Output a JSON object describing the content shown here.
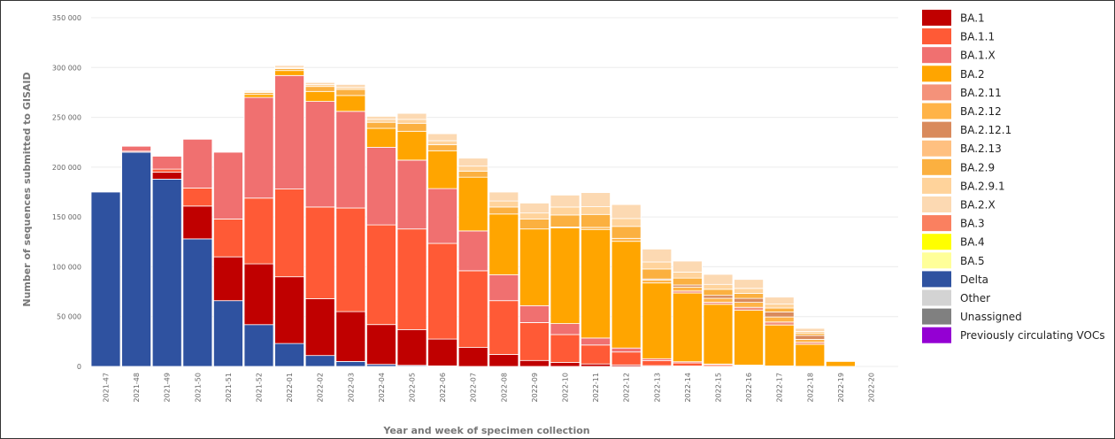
{
  "chart_data": {
    "type": "bar",
    "stacked": true,
    "title": "",
    "xlabel": "Year and week of specimen collection",
    "ylabel": "Number of sequences submitted to GISAID",
    "ylim": [
      0,
      350000
    ],
    "yticks": [
      0,
      50000,
      100000,
      150000,
      200000,
      250000,
      300000,
      350000
    ],
    "ytick_labels": [
      "0",
      "50 000",
      "100 000",
      "150 000",
      "200 000",
      "250 000",
      "300 000",
      "350 000"
    ],
    "grid": true,
    "legend_position": "right",
    "categories": [
      "2021-47",
      "2021-48",
      "2021-49",
      "2021-50",
      "2021-51",
      "2021-52",
      "2022-01",
      "2022-02",
      "2022-03",
      "2022-04",
      "2022-05",
      "2022-06",
      "2022-07",
      "2022-08",
      "2022-09",
      "2022-10",
      "2022-11",
      "2022-12",
      "2022-13",
      "2022-14",
      "2022-15",
      "2022-16",
      "2022-17",
      "2022-18",
      "2022-19",
      "2022-20"
    ],
    "series": [
      {
        "name": "Delta",
        "color": "#2f52a0",
        "values": [
          175000,
          215000,
          188000,
          128000,
          66000,
          42000,
          23000,
          11000,
          5000,
          2000,
          1000,
          500,
          0,
          0,
          0,
          0,
          0,
          0,
          0,
          0,
          0,
          0,
          0,
          0,
          0,
          0
        ]
      },
      {
        "name": "Other",
        "color": "#d3d3d3",
        "values": [
          0,
          0,
          0,
          0,
          0,
          0,
          0,
          0,
          0,
          0,
          0,
          0,
          0,
          0,
          0,
          0,
          0,
          0,
          0,
          0,
          0,
          0,
          0,
          0,
          0,
          0
        ]
      },
      {
        "name": "Unassigned",
        "color": "#808080",
        "values": [
          0,
          0,
          0,
          0,
          0,
          0,
          0,
          0,
          0,
          0,
          0,
          0,
          0,
          0,
          0,
          0,
          0,
          0,
          0,
          0,
          0,
          0,
          0,
          0,
          0,
          0
        ]
      },
      {
        "name": "BA.1",
        "color": "#c00000",
        "values": [
          0,
          1000,
          7000,
          33000,
          44000,
          61000,
          67000,
          57000,
          50000,
          40000,
          36000,
          27000,
          19000,
          12000,
          6000,
          4000,
          2500,
          1500,
          800,
          500,
          200,
          100,
          0,
          0,
          0,
          0
        ]
      },
      {
        "name": "BA.1.1",
        "color": "#ff5a36",
        "values": [
          0,
          0,
          3000,
          18000,
          38000,
          66000,
          88000,
          92000,
          104000,
          100000,
          101000,
          96000,
          77000,
          54000,
          38000,
          28000,
          19000,
          13000,
          5000,
          3000,
          1500,
          800,
          400,
          100,
          0,
          0
        ]
      },
      {
        "name": "BA.1.X",
        "color": "#f07070",
        "values": [
          0,
          5000,
          13000,
          49000,
          67000,
          101000,
          114000,
          106000,
          97000,
          78000,
          69000,
          55000,
          40000,
          26000,
          17000,
          11000,
          7000,
          4000,
          2000,
          1200,
          700,
          400,
          200,
          100,
          0,
          0
        ]
      },
      {
        "name": "BA.2",
        "color": "#ffa500",
        "values": [
          0,
          0,
          0,
          0,
          0,
          3000,
          5000,
          10000,
          16000,
          19000,
          29000,
          38000,
          54000,
          61000,
          77000,
          96000,
          109000,
          107000,
          76000,
          69000,
          60000,
          55000,
          41000,
          22000,
          5000,
          0
        ]
      },
      {
        "name": "BA.2.11",
        "color": "#f4927a",
        "values": [
          0,
          0,
          0,
          0,
          0,
          0,
          0,
          0,
          0,
          0,
          0,
          0,
          0,
          0,
          0,
          0,
          0,
          0,
          0,
          2000,
          2000,
          3000,
          3000,
          2000,
          0,
          0
        ]
      },
      {
        "name": "BA.2.12",
        "color": "#ffb347",
        "values": [
          0,
          0,
          0,
          0,
          0,
          0,
          0,
          0,
          0,
          0,
          0,
          0,
          0,
          0,
          0,
          1000,
          2000,
          3000,
          3000,
          4000,
          4000,
          5000,
          5000,
          3000,
          0,
          0
        ]
      },
      {
        "name": "BA.2.12.1",
        "color": "#d98a5c",
        "values": [
          0,
          0,
          0,
          0,
          0,
          0,
          0,
          0,
          0,
          0,
          0,
          0,
          0,
          0,
          0,
          0,
          0,
          0,
          1000,
          2000,
          3000,
          4000,
          5000,
          4000,
          0,
          0
        ]
      },
      {
        "name": "BA.2.13",
        "color": "#ffc080",
        "values": [
          0,
          0,
          0,
          0,
          0,
          0,
          0,
          0,
          0,
          0,
          0,
          0,
          0,
          0,
          0,
          0,
          0,
          0,
          0,
          0,
          0,
          0,
          0,
          0,
          0,
          0
        ]
      },
      {
        "name": "BA.2.9",
        "color": "#fbb040",
        "values": [
          0,
          0,
          0,
          0,
          0,
          2000,
          2000,
          5000,
          6000,
          6000,
          8000,
          6000,
          6000,
          7000,
          10000,
          12000,
          13000,
          12000,
          10000,
          7000,
          6000,
          5000,
          4000,
          2000,
          0,
          0
        ]
      },
      {
        "name": "BA.2.9.1",
        "color": "#ffd39b",
        "values": [
          0,
          0,
          0,
          0,
          0,
          1000,
          1000,
          2000,
          2000,
          3000,
          4000,
          4000,
          5000,
          6000,
          6000,
          8000,
          8000,
          8000,
          7000,
          6000,
          5000,
          5000,
          4000,
          2000,
          0,
          0
        ]
      },
      {
        "name": "BA.2.X",
        "color": "#fcd9b2",
        "values": [
          0,
          0,
          0,
          0,
          0,
          1000,
          2000,
          2000,
          3000,
          3000,
          6000,
          7000,
          8000,
          9000,
          10000,
          12000,
          14000,
          14000,
          13000,
          11000,
          10000,
          9000,
          7000,
          3000,
          0,
          0
        ]
      },
      {
        "name": "BA.3",
        "color": "#fa8060",
        "values": [
          0,
          0,
          0,
          0,
          0,
          0,
          0,
          0,
          0,
          0,
          0,
          0,
          0,
          0,
          0,
          0,
          0,
          0,
          0,
          0,
          0,
          0,
          0,
          0,
          0,
          0
        ]
      },
      {
        "name": "BA.4",
        "color": "#ffff00",
        "values": [
          0,
          0,
          0,
          0,
          0,
          0,
          0,
          0,
          0,
          0,
          0,
          0,
          0,
          0,
          0,
          0,
          0,
          0,
          0,
          0,
          0,
          0,
          0,
          0,
          0,
          0
        ]
      },
      {
        "name": "BA.5",
        "color": "#ffff99",
        "values": [
          0,
          0,
          0,
          0,
          0,
          0,
          0,
          0,
          0,
          0,
          0,
          0,
          0,
          0,
          0,
          0,
          0,
          0,
          0,
          0,
          0,
          0,
          0,
          0,
          0,
          0
        ]
      },
      {
        "name": "Previously circulating VOCs",
        "color": "#9400d3",
        "values": [
          0,
          0,
          0,
          0,
          0,
          0,
          0,
          0,
          0,
          0,
          0,
          0,
          0,
          0,
          0,
          0,
          0,
          0,
          0,
          0,
          0,
          0,
          0,
          0,
          0,
          0
        ]
      }
    ],
    "legend_order": [
      "BA.1",
      "BA.1.1",
      "BA.1.X",
      "BA.2",
      "BA.2.11",
      "BA.2.12",
      "BA.2.12.1",
      "BA.2.13",
      "BA.2.9",
      "BA.2.9.1",
      "BA.2.X",
      "BA.3",
      "BA.4",
      "BA.5",
      "Delta",
      "Other",
      "Unassigned",
      "Previously circulating VOCs"
    ]
  }
}
